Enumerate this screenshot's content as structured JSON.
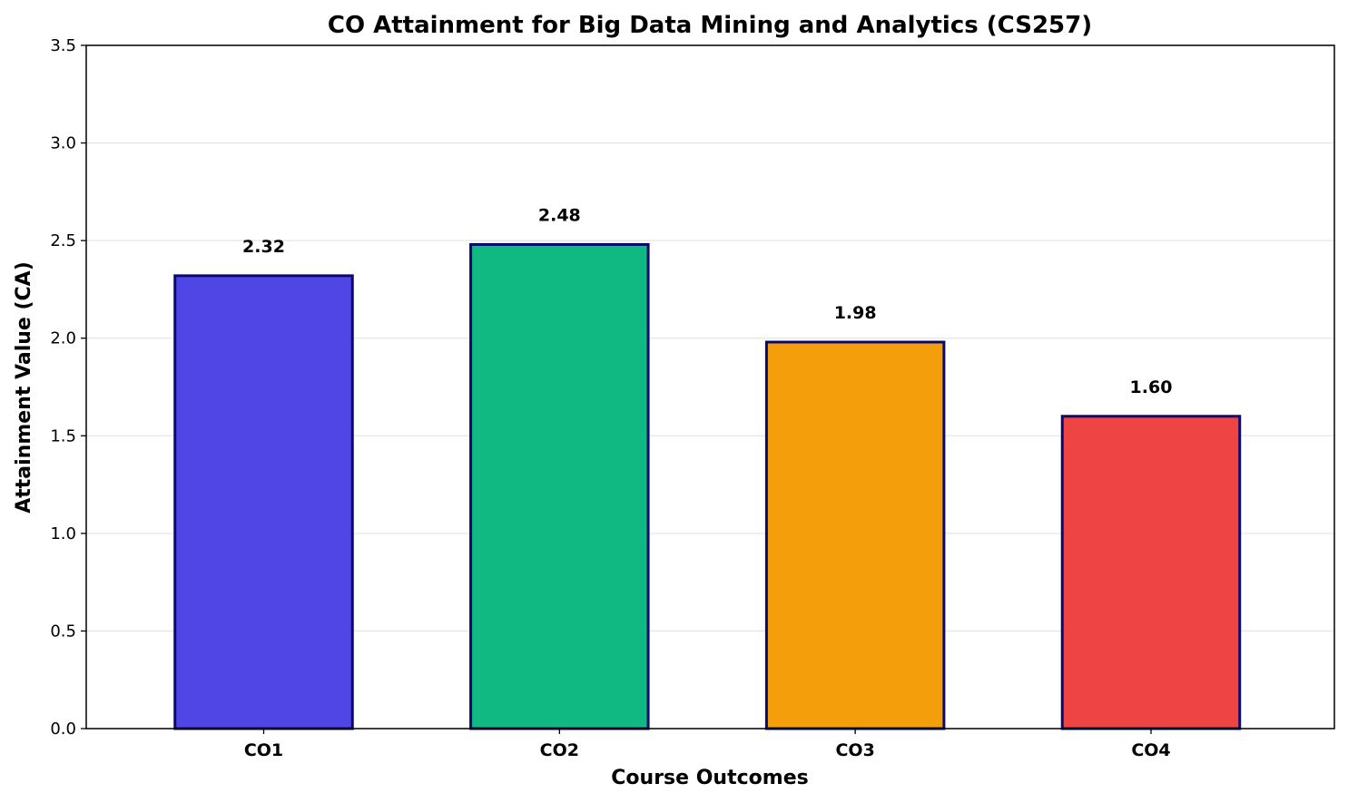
{
  "chart_data": {
    "type": "bar",
    "title": "CO Attainment for Big Data Mining and Analytics (CS257)",
    "xlabel": "Course Outcomes",
    "ylabel": "Attainment Value (CA)",
    "categories": [
      "CO1",
      "CO2",
      "CO3",
      "CO4"
    ],
    "values": [
      2.32,
      2.48,
      1.98,
      1.6
    ],
    "value_labels": [
      "2.32",
      "2.48",
      "1.98",
      "1.60"
    ],
    "ylim": [
      0,
      3.5
    ],
    "yticks": [
      0.0,
      0.5,
      1.0,
      1.5,
      2.0,
      2.5,
      3.0,
      3.5
    ],
    "ytick_labels": [
      "0.0",
      "0.5",
      "1.0",
      "1.5",
      "2.0",
      "2.5",
      "3.0",
      "3.5"
    ],
    "grid": "horizontal",
    "legend": "none",
    "colors": [
      "#4f46e5",
      "#10b981",
      "#f59e0b",
      "#ef4444"
    ],
    "edge_color": "#0a0a6e"
  }
}
